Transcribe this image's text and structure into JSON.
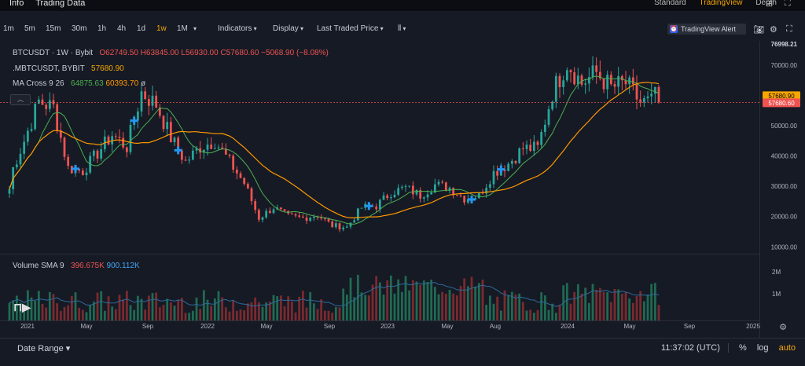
{
  "top_nav": {
    "left_items": [
      "Info",
      "Trading Data"
    ],
    "right_items": [
      "Standard",
      "TradingView",
      "Depth"
    ],
    "active": "TradingView"
  },
  "toolbar": {
    "intervals": [
      "1m",
      "5m",
      "15m",
      "30m",
      "1h",
      "4h",
      "1d",
      "1w",
      "1M"
    ],
    "active_interval": "1w",
    "indicators": "Indicators",
    "display": "Display",
    "price_source": "Last Traded Price",
    "alert_label": "TradingView Alert"
  },
  "legend": {
    "symbol": "BTCUSDT · 1W · Bybit",
    "o": "O62749.50",
    "h": "H63845.00",
    "l": "L56930.00",
    "c": "C57680.60",
    "chg": "−5068.90 (−8.08%)",
    "index_symbol": ".MBTCUSDT, BYBIT",
    "index_value": "57680.90",
    "ma_name": "MA Cross 9 26",
    "ma_fast": "64875.63",
    "ma_slow": "60393.70",
    "ma_extra": "ø",
    "vol_name": "Volume SMA 9",
    "vol_value": "396.675K",
    "vol_sma": "900.112K"
  },
  "price_axis": {
    "labels": [
      "70000.00",
      "60000.00",
      "50000.00",
      "40000.00",
      "30000.00",
      "20000.00",
      "10000.00"
    ],
    "top_value": "76998.21",
    "last_index": "57680.90",
    "last_price": "57680.60"
  },
  "volume_axis": {
    "labels": [
      "2M",
      "1M"
    ]
  },
  "time_axis": {
    "labels": [
      "2021",
      "May",
      "Sep",
      "2022",
      "May",
      "Sep",
      "2023",
      "May",
      "Aug",
      "2024",
      "May",
      "Sep",
      "2025"
    ]
  },
  "bottom_bar": {
    "date_range": "Date Range",
    "time": "11:37:02 (UTC)",
    "percent": "%",
    "log": "log",
    "auto": "auto"
  },
  "chart_data": {
    "type": "candlestick",
    "symbol": "BTCUSDT",
    "interval": "1W",
    "ylim": [
      8000,
      78000
    ],
    "x_range": [
      "2020-12-28",
      "2025-03-15"
    ],
    "colors": {
      "up": "#26a69a",
      "down": "#ef5350",
      "ma_fast": "#4caf50",
      "ma_slow": "#ff9800",
      "vol_sma": "#2e6a9a"
    },
    "closes": [
      [
        "2021-01",
        33000
      ],
      [
        "2021-02",
        45000
      ],
      [
        "2021-03",
        58000
      ],
      [
        "2021-04",
        56000
      ],
      [
        "2021-05",
        36000
      ],
      [
        "2021-06",
        35000
      ],
      [
        "2021-07",
        41000
      ],
      [
        "2021-08",
        47000
      ],
      [
        "2021-09",
        43000
      ],
      [
        "2021-10",
        61000
      ],
      [
        "2021-11",
        57000
      ],
      [
        "2021-12",
        46000
      ],
      [
        "2022-01",
        38000
      ],
      [
        "2022-02",
        43000
      ],
      [
        "2022-03",
        45000
      ],
      [
        "2022-04",
        38000
      ],
      [
        "2022-05",
        31000
      ],
      [
        "2022-06",
        19500
      ],
      [
        "2022-07",
        23000
      ],
      [
        "2022-08",
        20000
      ],
      [
        "2022-09",
        19500
      ],
      [
        "2022-10",
        20500
      ],
      [
        "2022-11",
        17000
      ],
      [
        "2022-12",
        16500
      ],
      [
        "2023-01",
        23000
      ],
      [
        "2023-02",
        23500
      ],
      [
        "2023-03",
        28000
      ],
      [
        "2023-04",
        29500
      ],
      [
        "2023-05",
        27000
      ],
      [
        "2023-06",
        30500
      ],
      [
        "2023-07",
        29500
      ],
      [
        "2023-08",
        26000
      ],
      [
        "2023-09",
        27000
      ],
      [
        "2023-10",
        34500
      ],
      [
        "2023-11",
        37500
      ],
      [
        "2023-12",
        42500
      ],
      [
        "2024-01",
        42500
      ],
      [
        "2024-02",
        61000
      ],
      [
        "2024-03",
        71000
      ],
      [
        "2024-04",
        64000
      ],
      [
        "2024-05",
        67500
      ],
      [
        "2024-06",
        62500
      ],
      [
        "2024-07",
        64000
      ],
      [
        "2024-08",
        57680
      ]
    ],
    "ma_fast_last": 64875.63,
    "ma_slow_last": 60393.7,
    "cross_markers": [
      "2021-05",
      "2021-09",
      "2021-12",
      "2023-01",
      "2023-08",
      "2023-10"
    ]
  }
}
